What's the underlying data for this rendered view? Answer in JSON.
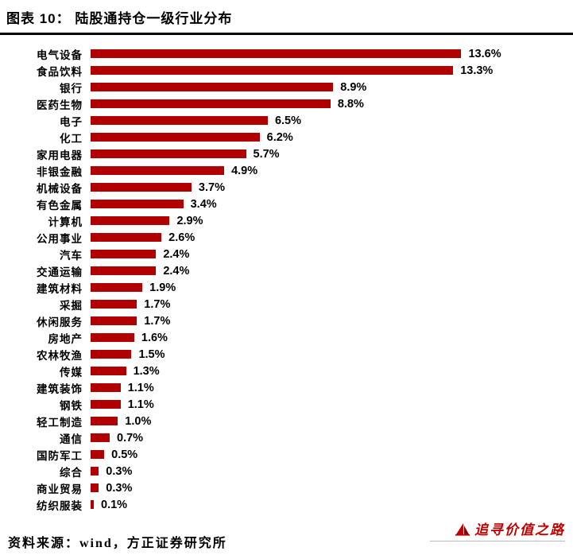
{
  "header": {
    "title": "图表 10： 陆股通持仓一级行业分布"
  },
  "chart_data": {
    "type": "bar",
    "orientation": "horizontal",
    "title": "陆股通持仓一级行业分布",
    "xlabel": "",
    "ylabel": "",
    "xlim": [
      0,
      15
    ],
    "grid": false,
    "bar_color": "#b00000",
    "categories": [
      "电气设备",
      "食品饮料",
      "银行",
      "医药生物",
      "电子",
      "化工",
      "家用电器",
      "非银金融",
      "机械设备",
      "有色金属",
      "计算机",
      "公用事业",
      "汽车",
      "交通运输",
      "建筑材料",
      "采掘",
      "休闲服务",
      "房地产",
      "农林牧渔",
      "传媒",
      "建筑装饰",
      "钢铁",
      "轻工制造",
      "通信",
      "国防军工",
      "综合",
      "商业贸易",
      "纺织服装"
    ],
    "values": [
      13.6,
      13.3,
      8.9,
      8.8,
      6.5,
      6.2,
      5.7,
      4.9,
      3.7,
      3.4,
      2.9,
      2.6,
      2.4,
      2.4,
      1.9,
      1.7,
      1.7,
      1.6,
      1.5,
      1.3,
      1.1,
      1.1,
      1.0,
      0.7,
      0.5,
      0.3,
      0.3,
      0.1
    ],
    "value_labels": [
      "13.6%",
      "13.3%",
      "8.9%",
      "8.8%",
      "6.5%",
      "6.2%",
      "5.7%",
      "4.9%",
      "3.7%",
      "3.4%",
      "2.9%",
      "2.6%",
      "2.4%",
      "2.4%",
      "1.9%",
      "1.7%",
      "1.7%",
      "1.6%",
      "1.5%",
      "1.3%",
      "1.1%",
      "1.1%",
      "1.0%",
      "0.7%",
      "0.5%",
      "0.3%",
      "0.3%",
      "0.1%"
    ]
  },
  "footer": {
    "source": "资料来源：wind，方正证券研究所"
  },
  "watermark": {
    "text": "追寻价值之路",
    "color": "#c00000"
  }
}
